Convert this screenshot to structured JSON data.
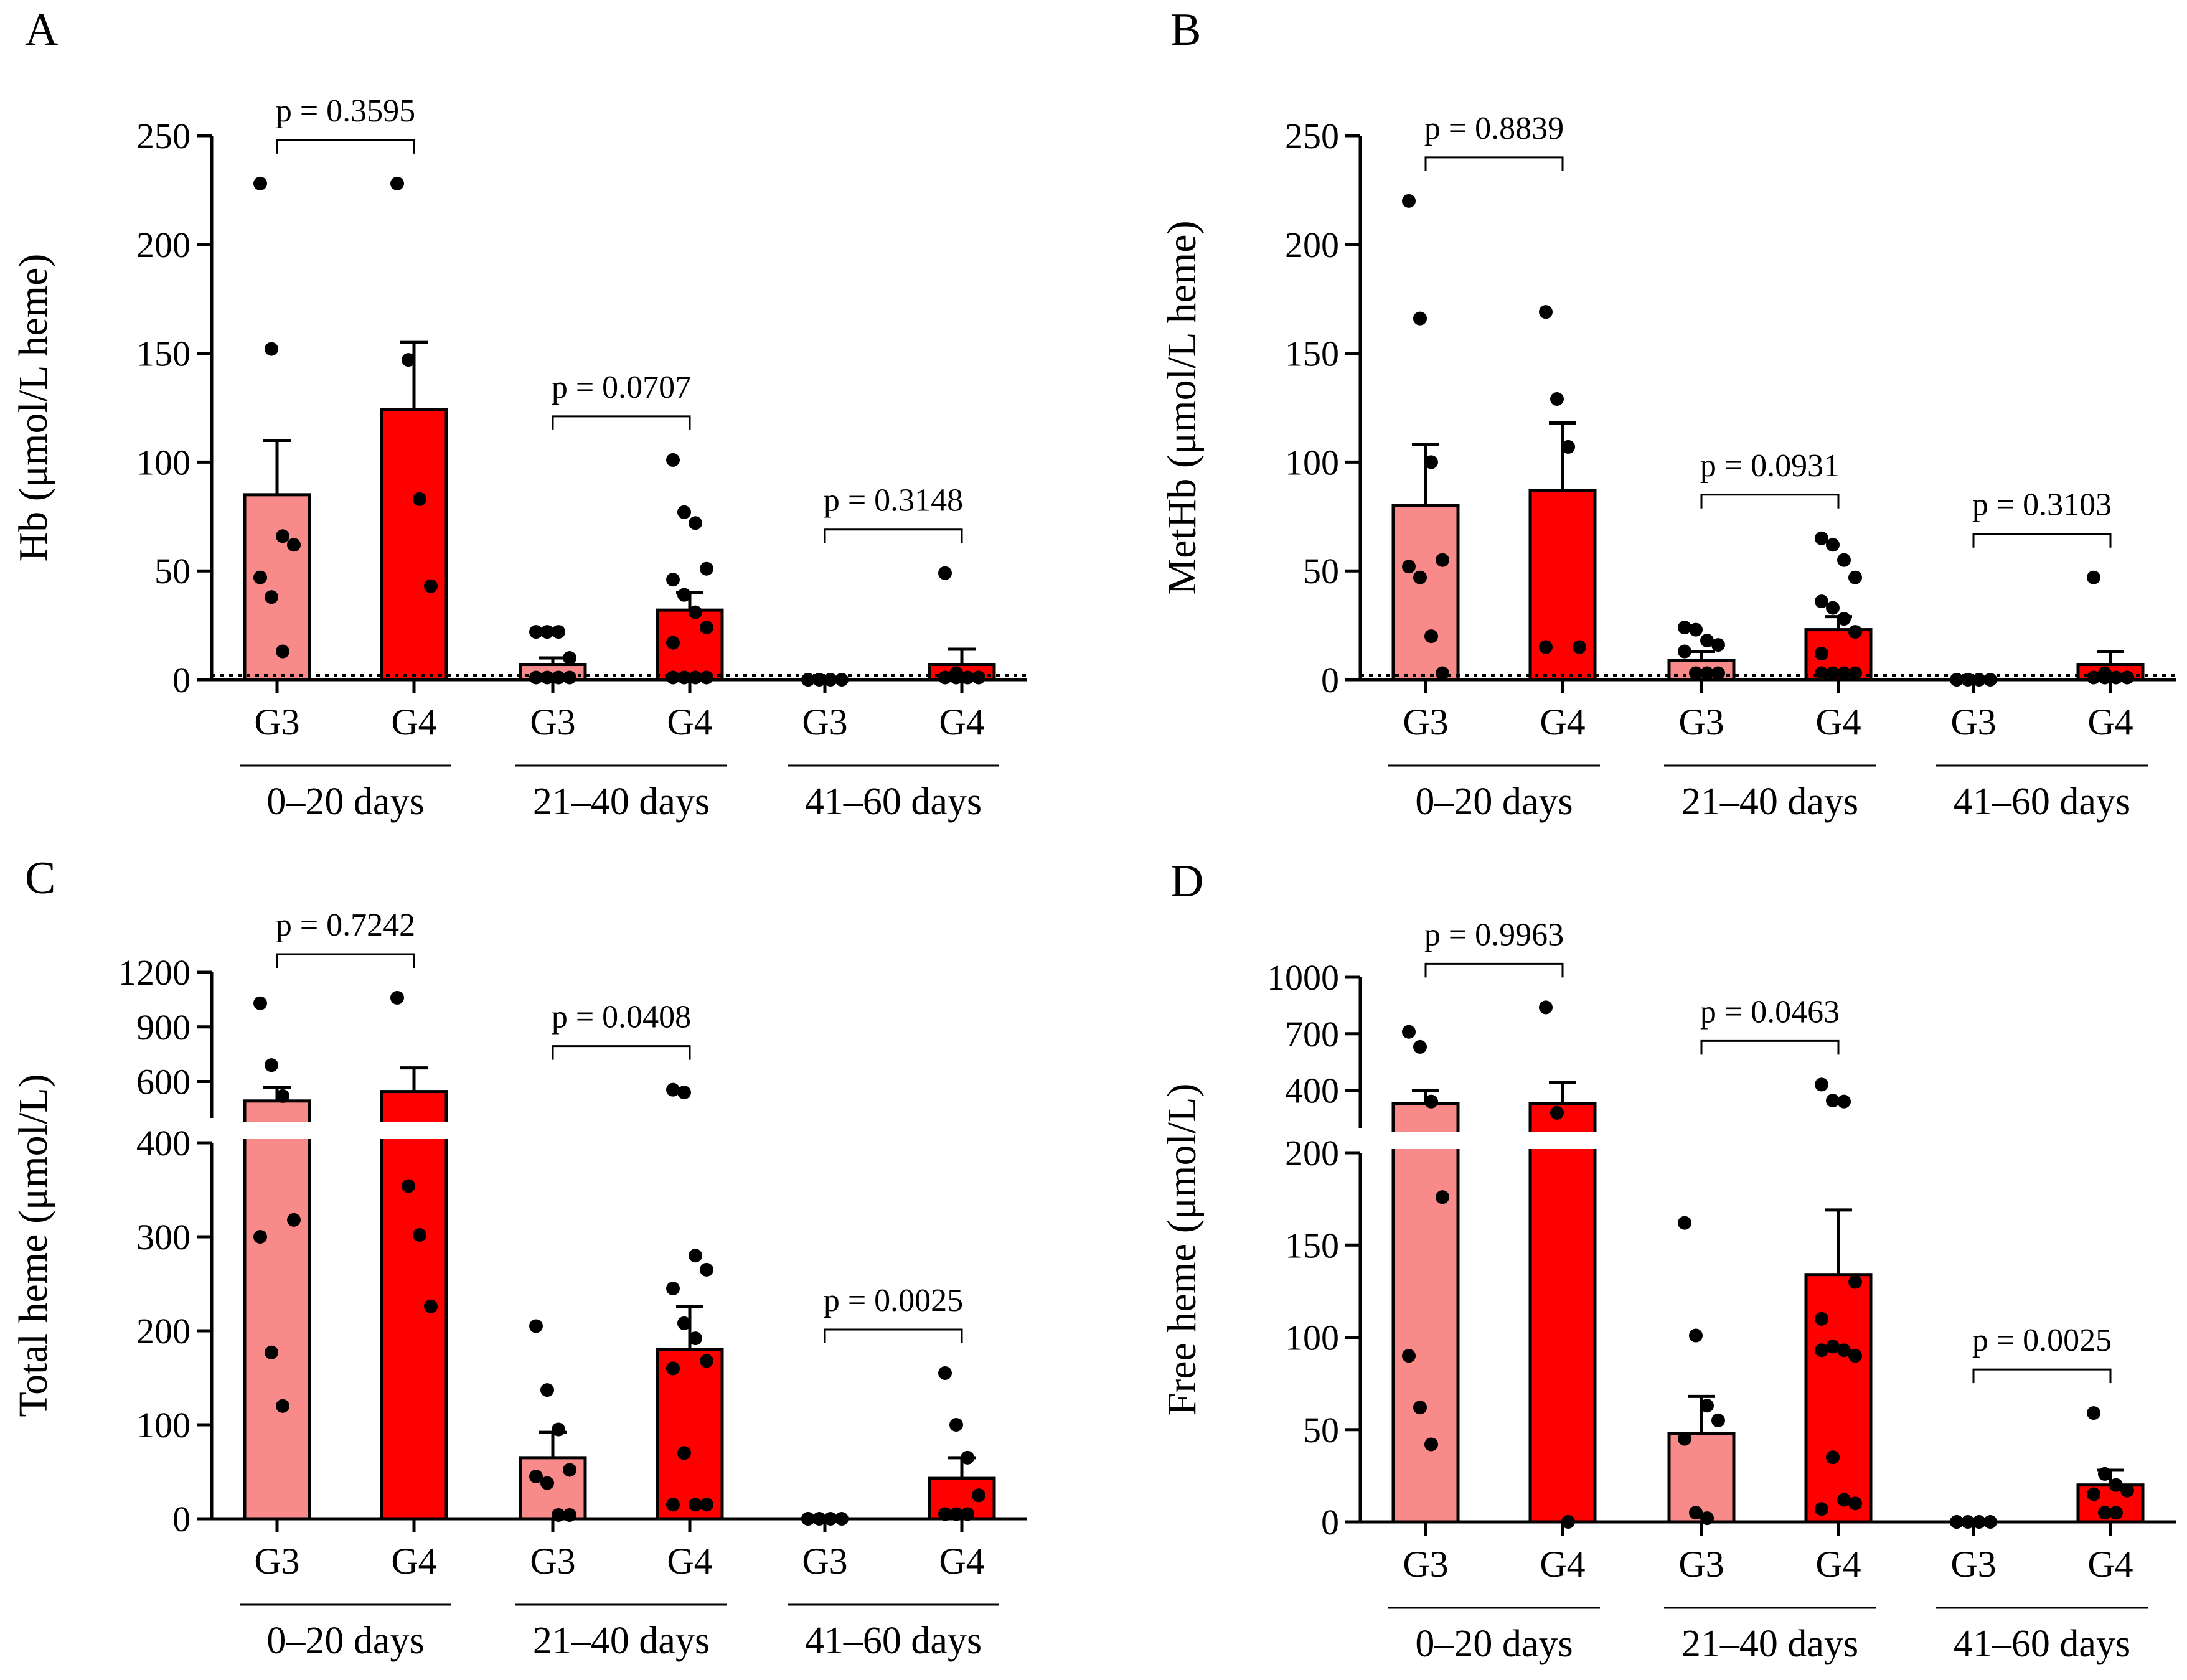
{
  "colors": {
    "G3": "#F98A8A",
    "G4": "#FF0000",
    "axis": "#000000",
    "point": "#000000"
  },
  "chart_data": [
    {
      "type": "bar",
      "panel": "A",
      "ylabel": "Hb (μmol/L heme)",
      "categories": [
        "G3",
        "G4",
        "G3",
        "G4",
        "G3",
        "G4"
      ],
      "groups": [
        "0–20 days",
        "21–40 days",
        "41–60 days"
      ],
      "ylim": [
        0,
        250
      ],
      "yticks": [
        "0",
        "50",
        "100",
        "150",
        "200",
        "250"
      ],
      "ytick_values": [
        0,
        50,
        100,
        150,
        200,
        250
      ],
      "reference_line": 2,
      "means": [
        85,
        124,
        7,
        32,
        0,
        7
      ],
      "sem": [
        25,
        31,
        3,
        8,
        0,
        7
      ],
      "points": [
        [
          228,
          152,
          66,
          62,
          47,
          38,
          13
        ],
        [
          228,
          147,
          83,
          43
        ],
        [
          22,
          22,
          22,
          10,
          1,
          1,
          1,
          1
        ],
        [
          101,
          77,
          72,
          51,
          46,
          39,
          31,
          24,
          17,
          1,
          1,
          1,
          1
        ],
        [
          0,
          0,
          0,
          0,
          0
        ],
        [
          49,
          3,
          1,
          1,
          1,
          1
        ]
      ],
      "pvalues": [
        "p = 0.3595",
        "p = 0.0707",
        "p = 0.3148"
      ]
    },
    {
      "type": "bar",
      "panel": "B",
      "ylabel": "MetHb (μmol/L heme)",
      "categories": [
        "G3",
        "G4",
        "G3",
        "G4",
        "G3",
        "G4"
      ],
      "groups": [
        "0–20 days",
        "21–40 days",
        "41–60 days"
      ],
      "ylim": [
        0,
        250
      ],
      "yticks": [
        "0",
        "50",
        "100",
        "150",
        "200",
        "250"
      ],
      "ytick_values": [
        0,
        50,
        100,
        150,
        200,
        250
      ],
      "reference_line": 2,
      "means": [
        80,
        87,
        9,
        23,
        0,
        7
      ],
      "sem": [
        28,
        31,
        4,
        6,
        0,
        6
      ],
      "points": [
        [
          220,
          166,
          100,
          55,
          52,
          47,
          20,
          3
        ],
        [
          169,
          129,
          107,
          15,
          15
        ],
        [
          24,
          23,
          18,
          16,
          13,
          3,
          3,
          3
        ],
        [
          65,
          62,
          55,
          47,
          36,
          33,
          28,
          22,
          12,
          3,
          3,
          3,
          3
        ],
        [
          0,
          0,
          0,
          0,
          0
        ],
        [
          47,
          3,
          1,
          1,
          1,
          1
        ]
      ],
      "pvalues": [
        "p = 0.8839",
        "p = 0.0931",
        "p = 0.3103"
      ]
    },
    {
      "type": "bar",
      "panel": "C",
      "ylabel": "Total heme (μmol/L)",
      "categories": [
        "G3",
        "G4",
        "G3",
        "G4",
        "G3",
        "G4"
      ],
      "groups": [
        "0–20 days",
        "21–40 days",
        "41–60 days"
      ],
      "axis_break": {
        "lower": [
          0,
          400
        ],
        "upper": [
          400,
          1200
        ]
      },
      "yticks": [
        "0",
        "100",
        "200",
        "300",
        "400",
        "600",
        "900",
        "1200"
      ],
      "ytick_values": [
        0,
        100,
        200,
        300,
        400,
        600,
        900,
        1200
      ],
      "means": [
        493,
        545,
        65,
        180,
        0,
        43
      ],
      "sem": [
        75,
        130,
        27,
        46,
        0,
        22
      ],
      "points": [
        [
          1030,
          690,
          520,
          318,
          300,
          177,
          120
        ],
        [
          1060,
          354,
          302,
          226
        ],
        [
          205,
          137,
          95,
          52,
          45,
          38,
          4,
          4
        ],
        [
          555,
          540,
          280,
          265,
          245,
          208,
          192,
          168,
          160,
          70,
          15,
          15,
          15
        ],
        [
          0,
          0,
          0,
          0,
          0
        ],
        [
          155,
          100,
          65,
          25,
          5,
          5,
          5
        ]
      ],
      "pvalues": [
        "p = 0.7242",
        "p = 0.0408",
        "p = 0.0025"
      ]
    },
    {
      "type": "bar",
      "panel": "D",
      "ylabel": "Free heme (μmol/L)",
      "categories": [
        "G3",
        "G4",
        "G3",
        "G4",
        "G3",
        "G4"
      ],
      "groups": [
        "0–20 days",
        "21–40 days",
        "41–60 days"
      ],
      "axis_break": {
        "lower": [
          0,
          200
        ],
        "upper": [
          200,
          1000
        ]
      },
      "yticks": [
        "0",
        "50",
        "100",
        "150",
        "200",
        "400",
        "700",
        "1000"
      ],
      "ytick_values": [
        0,
        50,
        100,
        150,
        200,
        400,
        700,
        1000
      ],
      "means": [
        330,
        330,
        48,
        134,
        0,
        20
      ],
      "sem": [
        70,
        110,
        20,
        35,
        0,
        8
      ],
      "points": [
        [
          710,
          630,
          340,
          176,
          90,
          62,
          42
        ],
        [
          840,
          280,
          0
        ],
        [
          162,
          101,
          63,
          55,
          45,
          5,
          2
        ],
        [
          430,
          345,
          340,
          130,
          110,
          95,
          93,
          90,
          93,
          35,
          12,
          10,
          7
        ],
        [
          0,
          0,
          0,
          0,
          0
        ],
        [
          59,
          26,
          20,
          17,
          15,
          5,
          5
        ]
      ],
      "pvalues": [
        "p = 0.9963",
        "p = 0.0463",
        "p = 0.0025"
      ]
    }
  ]
}
